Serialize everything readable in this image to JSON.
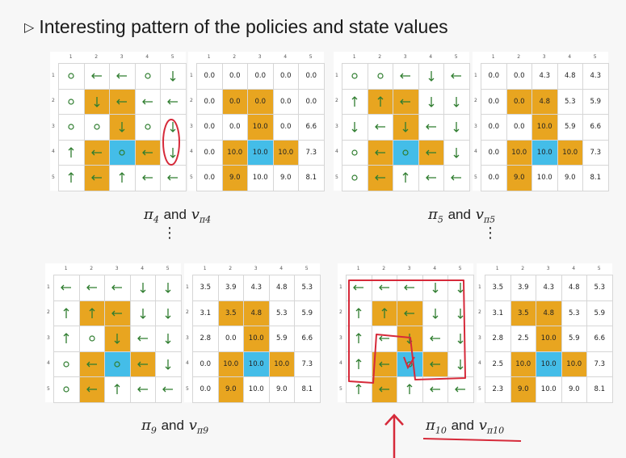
{
  "title": "Interesting pattern of the policies and state values",
  "header_labels": [
    "1",
    "2",
    "3",
    "4",
    "5"
  ],
  "colors": {
    "forbidden": "#e8a520",
    "target": "#44bde8",
    "arrow": "#2f7d2f",
    "annotation": "#d62a3a"
  },
  "cell_types": [
    [
      "w",
      "w",
      "w",
      "w",
      "w"
    ],
    [
      "w",
      "y",
      "y",
      "w",
      "w"
    ],
    [
      "w",
      "w",
      "y",
      "w",
      "w"
    ],
    [
      "w",
      "y",
      "b",
      "y",
      "w"
    ],
    [
      "w",
      "y",
      "w",
      "w",
      "w"
    ]
  ],
  "panels": [
    {
      "name": "pi4",
      "caption_pi": "π",
      "caption_sub": "4",
      "caption_and": "and",
      "caption_v": "v",
      "caption_vsub": "π4",
      "policy": [
        [
          "o",
          "l",
          "l",
          "o",
          "d"
        ],
        [
          "o",
          "d",
          "l",
          "l",
          "l"
        ],
        [
          "o",
          "o",
          "d",
          "o",
          "d"
        ],
        [
          "u",
          "l",
          "o",
          "l",
          "d"
        ],
        [
          "u",
          "l",
          "u",
          "l",
          "l"
        ]
      ],
      "values": [
        [
          "0.0",
          "0.0",
          "0.0",
          "0.0",
          "0.0"
        ],
        [
          "0.0",
          "0.0",
          "0.0",
          "0.0",
          "0.0"
        ],
        [
          "0.0",
          "0.0",
          "10.0",
          "0.0",
          "6.6"
        ],
        [
          "0.0",
          "10.0",
          "10.0",
          "10.0",
          "7.3"
        ],
        [
          "0.0",
          "9.0",
          "10.0",
          "9.0",
          "8.1"
        ]
      ]
    },
    {
      "name": "pi5",
      "caption_pi": "π",
      "caption_sub": "5",
      "caption_and": "and",
      "caption_v": "v",
      "caption_vsub": "π5",
      "policy": [
        [
          "o",
          "o",
          "l",
          "d",
          "l"
        ],
        [
          "u",
          "u",
          "l",
          "d",
          "d"
        ],
        [
          "d",
          "l",
          "d",
          "l",
          "d"
        ],
        [
          "o",
          "l",
          "o",
          "l",
          "d"
        ],
        [
          "o",
          "l",
          "u",
          "l",
          "l"
        ]
      ],
      "values": [
        [
          "0.0",
          "0.0",
          "4.3",
          "4.8",
          "4.3"
        ],
        [
          "0.0",
          "0.0",
          "4.8",
          "5.3",
          "5.9"
        ],
        [
          "0.0",
          "0.0",
          "10.0",
          "5.9",
          "6.6"
        ],
        [
          "0.0",
          "10.0",
          "10.0",
          "10.0",
          "7.3"
        ],
        [
          "0.0",
          "9.0",
          "10.0",
          "9.0",
          "8.1"
        ]
      ]
    },
    {
      "name": "pi9",
      "caption_pi": "π",
      "caption_sub": "9",
      "caption_and": "and",
      "caption_v": "v",
      "caption_vsub": "π9",
      "policy": [
        [
          "l",
          "l",
          "l",
          "d",
          "d"
        ],
        [
          "u",
          "u",
          "l",
          "d",
          "d"
        ],
        [
          "u",
          "o",
          "d",
          "l",
          "d"
        ],
        [
          "o",
          "l",
          "o",
          "l",
          "d"
        ],
        [
          "o",
          "l",
          "u",
          "l",
          "l"
        ]
      ],
      "values": [
        [
          "3.5",
          "3.9",
          "4.3",
          "4.8",
          "5.3"
        ],
        [
          "3.1",
          "3.5",
          "4.8",
          "5.3",
          "5.9"
        ],
        [
          "2.8",
          "0.0",
          "10.0",
          "5.9",
          "6.6"
        ],
        [
          "0.0",
          "10.0",
          "10.0",
          "10.0",
          "7.3"
        ],
        [
          "0.0",
          "9.0",
          "10.0",
          "9.0",
          "8.1"
        ]
      ]
    },
    {
      "name": "pi10",
      "caption_pi": "π",
      "caption_sub": "10",
      "caption_and": "and",
      "caption_v": "v",
      "caption_vsub": "π10",
      "policy": [
        [
          "l",
          "l",
          "l",
          "d",
          "d"
        ],
        [
          "u",
          "u",
          "l",
          "d",
          "d"
        ],
        [
          "u",
          "l",
          "d",
          "l",
          "d"
        ],
        [
          "u",
          "l",
          "o",
          "l",
          "d"
        ],
        [
          "u",
          "l",
          "u",
          "l",
          "l"
        ]
      ],
      "values": [
        [
          "3.5",
          "3.9",
          "4.3",
          "4.8",
          "5.3"
        ],
        [
          "3.1",
          "3.5",
          "4.8",
          "5.3",
          "5.9"
        ],
        [
          "2.8",
          "2.5",
          "10.0",
          "5.9",
          "6.6"
        ],
        [
          "2.5",
          "10.0",
          "10.0",
          "10.0",
          "7.3"
        ],
        [
          "2.3",
          "9.0",
          "10.0",
          "9.0",
          "8.1"
        ]
      ]
    }
  ],
  "vdots": "⋮"
}
